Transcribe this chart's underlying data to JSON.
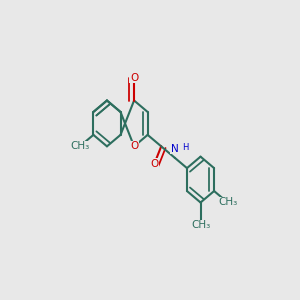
{
  "background_color": "#e8e8e8",
  "bond_color": "#2d6e5e",
  "o_color": "#cc0000",
  "n_color": "#0000cc",
  "figsize": [
    3.0,
    3.0
  ],
  "dpi": 100,
  "bl": 1.0
}
